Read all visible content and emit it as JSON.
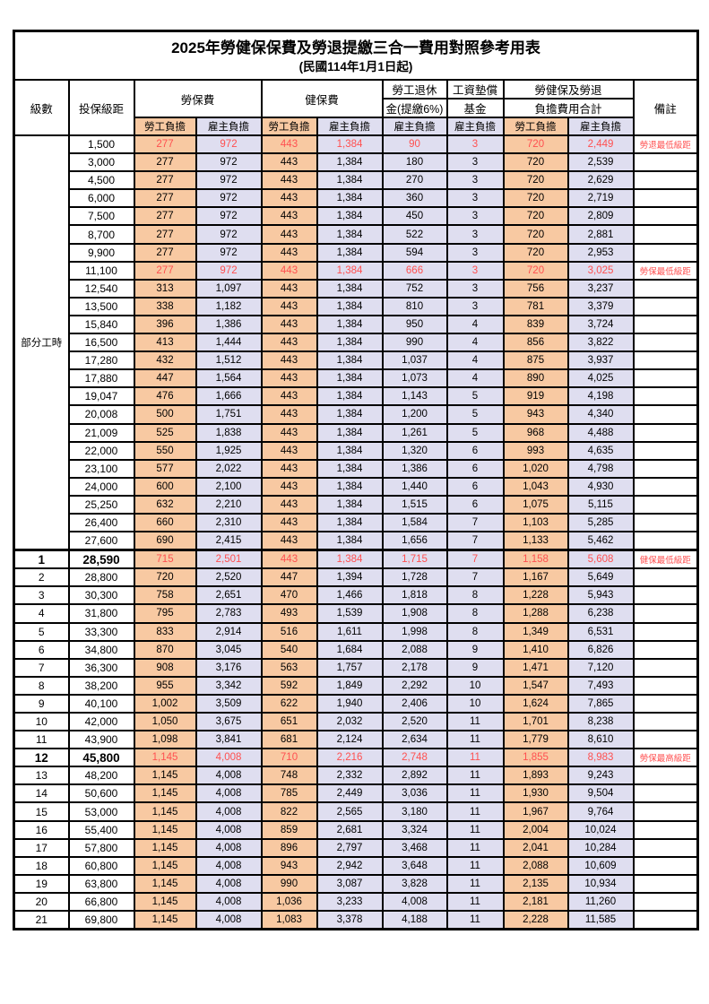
{
  "title": "2025年勞健保保費及勞退提繳三合一費用對照參考用表",
  "subtitle": "(民國114年1月1日起)",
  "colors": {
    "employee_burden_bg": "#F8C9A2",
    "employer_burden_bg": "#DFDEF0",
    "highlight_red": "#FF5050",
    "border": "#000000"
  },
  "header": {
    "level": "級數",
    "bracket": "投保級距",
    "labor_insurance": "勞保費",
    "health_insurance": "健保費",
    "pension_line1": "勞工退休",
    "pension_line2": "金(提繳6%)",
    "wage_fund_line1": "工資墊償",
    "wage_fund_line2": "基金",
    "total_line1": "勞健保及勞退",
    "total_line2": "負擔費用合計",
    "note": "備註",
    "self_burden": "勞工負擔",
    "employer_burden": "雇主負擔"
  },
  "part_time_group": {
    "label": "部分工時",
    "row_count": 23
  },
  "rows": [
    {
      "level": "",
      "bracket": "1,500",
      "values": [
        "277",
        "972",
        "443",
        "1,384",
        "90",
        "3",
        "720",
        "2,449"
      ],
      "note": "勞退最低級距",
      "red": true,
      "bold": false,
      "thick_top": false
    },
    {
      "level": "",
      "bracket": "3,000",
      "values": [
        "277",
        "972",
        "443",
        "1,384",
        "180",
        "3",
        "720",
        "2,539"
      ],
      "note": "",
      "red": false,
      "bold": false,
      "thick_top": false
    },
    {
      "level": "",
      "bracket": "4,500",
      "values": [
        "277",
        "972",
        "443",
        "1,384",
        "270",
        "3",
        "720",
        "2,629"
      ],
      "note": "",
      "red": false,
      "bold": false,
      "thick_top": false
    },
    {
      "level": "",
      "bracket": "6,000",
      "values": [
        "277",
        "972",
        "443",
        "1,384",
        "360",
        "3",
        "720",
        "2,719"
      ],
      "note": "",
      "red": false,
      "bold": false,
      "thick_top": false
    },
    {
      "level": "",
      "bracket": "7,500",
      "values": [
        "277",
        "972",
        "443",
        "1,384",
        "450",
        "3",
        "720",
        "2,809"
      ],
      "note": "",
      "red": false,
      "bold": false,
      "thick_top": false
    },
    {
      "level": "",
      "bracket": "8,700",
      "values": [
        "277",
        "972",
        "443",
        "1,384",
        "522",
        "3",
        "720",
        "2,881"
      ],
      "note": "",
      "red": false,
      "bold": false,
      "thick_top": false
    },
    {
      "level": "",
      "bracket": "9,900",
      "values": [
        "277",
        "972",
        "443",
        "1,384",
        "594",
        "3",
        "720",
        "2,953"
      ],
      "note": "",
      "red": false,
      "bold": false,
      "thick_top": false
    },
    {
      "level": "",
      "bracket": "11,100",
      "values": [
        "277",
        "972",
        "443",
        "1,384",
        "666",
        "3",
        "720",
        "3,025"
      ],
      "note": "勞保最低級距",
      "red": true,
      "bold": false,
      "thick_top": false
    },
    {
      "level": "",
      "bracket": "12,540",
      "values": [
        "313",
        "1,097",
        "443",
        "1,384",
        "752",
        "3",
        "756",
        "3,237"
      ],
      "note": "",
      "red": false,
      "bold": false,
      "thick_top": false
    },
    {
      "level": "",
      "bracket": "13,500",
      "values": [
        "338",
        "1,182",
        "443",
        "1,384",
        "810",
        "3",
        "781",
        "3,379"
      ],
      "note": "",
      "red": false,
      "bold": false,
      "thick_top": false
    },
    {
      "level": "",
      "bracket": "15,840",
      "values": [
        "396",
        "1,386",
        "443",
        "1,384",
        "950",
        "4",
        "839",
        "3,724"
      ],
      "note": "",
      "red": false,
      "bold": false,
      "thick_top": false
    },
    {
      "level": "",
      "bracket": "16,500",
      "values": [
        "413",
        "1,444",
        "443",
        "1,384",
        "990",
        "4",
        "856",
        "3,822"
      ],
      "note": "",
      "red": false,
      "bold": false,
      "thick_top": false
    },
    {
      "level": "",
      "bracket": "17,280",
      "values": [
        "432",
        "1,512",
        "443",
        "1,384",
        "1,037",
        "4",
        "875",
        "3,937"
      ],
      "note": "",
      "red": false,
      "bold": false,
      "thick_top": false
    },
    {
      "level": "",
      "bracket": "17,880",
      "values": [
        "447",
        "1,564",
        "443",
        "1,384",
        "1,073",
        "4",
        "890",
        "4,025"
      ],
      "note": "",
      "red": false,
      "bold": false,
      "thick_top": false
    },
    {
      "level": "",
      "bracket": "19,047",
      "values": [
        "476",
        "1,666",
        "443",
        "1,384",
        "1,143",
        "5",
        "919",
        "4,198"
      ],
      "note": "",
      "red": false,
      "bold": false,
      "thick_top": false
    },
    {
      "level": "",
      "bracket": "20,008",
      "values": [
        "500",
        "1,751",
        "443",
        "1,384",
        "1,200",
        "5",
        "943",
        "4,340"
      ],
      "note": "",
      "red": false,
      "bold": false,
      "thick_top": false
    },
    {
      "level": "",
      "bracket": "21,009",
      "values": [
        "525",
        "1,838",
        "443",
        "1,384",
        "1,261",
        "5",
        "968",
        "4,488"
      ],
      "note": "",
      "red": false,
      "bold": false,
      "thick_top": false
    },
    {
      "level": "",
      "bracket": "22,000",
      "values": [
        "550",
        "1,925",
        "443",
        "1,384",
        "1,320",
        "6",
        "993",
        "4,635"
      ],
      "note": "",
      "red": false,
      "bold": false,
      "thick_top": false
    },
    {
      "level": "",
      "bracket": "23,100",
      "values": [
        "577",
        "2,022",
        "443",
        "1,384",
        "1,386",
        "6",
        "1,020",
        "4,798"
      ],
      "note": "",
      "red": false,
      "bold": false,
      "thick_top": false
    },
    {
      "level": "",
      "bracket": "24,000",
      "values": [
        "600",
        "2,100",
        "443",
        "1,384",
        "1,440",
        "6",
        "1,043",
        "4,930"
      ],
      "note": "",
      "red": false,
      "bold": false,
      "thick_top": false
    },
    {
      "level": "",
      "bracket": "25,250",
      "values": [
        "632",
        "2,210",
        "443",
        "1,384",
        "1,515",
        "6",
        "1,075",
        "5,115"
      ],
      "note": "",
      "red": false,
      "bold": false,
      "thick_top": false
    },
    {
      "level": "",
      "bracket": "26,400",
      "values": [
        "660",
        "2,310",
        "443",
        "1,384",
        "1,584",
        "7",
        "1,103",
        "5,285"
      ],
      "note": "",
      "red": false,
      "bold": false,
      "thick_top": false
    },
    {
      "level": "",
      "bracket": "27,600",
      "values": [
        "690",
        "2,415",
        "443",
        "1,384",
        "1,656",
        "7",
        "1,133",
        "5,462"
      ],
      "note": "",
      "red": false,
      "bold": false,
      "thick_top": false
    },
    {
      "level": "1",
      "bracket": "28,590",
      "values": [
        "715",
        "2,501",
        "443",
        "1,384",
        "1,715",
        "7",
        "1,158",
        "5,608"
      ],
      "note": "健保最低級距",
      "red": true,
      "bold": true,
      "thick_top": true
    },
    {
      "level": "2",
      "bracket": "28,800",
      "values": [
        "720",
        "2,520",
        "447",
        "1,394",
        "1,728",
        "7",
        "1,167",
        "5,649"
      ],
      "note": "",
      "red": false,
      "bold": false,
      "thick_top": false
    },
    {
      "level": "3",
      "bracket": "30,300",
      "values": [
        "758",
        "2,651",
        "470",
        "1,466",
        "1,818",
        "8",
        "1,228",
        "5,943"
      ],
      "note": "",
      "red": false,
      "bold": false,
      "thick_top": false
    },
    {
      "level": "4",
      "bracket": "31,800",
      "values": [
        "795",
        "2,783",
        "493",
        "1,539",
        "1,908",
        "8",
        "1,288",
        "6,238"
      ],
      "note": "",
      "red": false,
      "bold": false,
      "thick_top": false
    },
    {
      "level": "5",
      "bracket": "33,300",
      "values": [
        "833",
        "2,914",
        "516",
        "1,611",
        "1,998",
        "8",
        "1,349",
        "6,531"
      ],
      "note": "",
      "red": false,
      "bold": false,
      "thick_top": false
    },
    {
      "level": "6",
      "bracket": "34,800",
      "values": [
        "870",
        "3,045",
        "540",
        "1,684",
        "2,088",
        "9",
        "1,410",
        "6,826"
      ],
      "note": "",
      "red": false,
      "bold": false,
      "thick_top": false
    },
    {
      "level": "7",
      "bracket": "36,300",
      "values": [
        "908",
        "3,176",
        "563",
        "1,757",
        "2,178",
        "9",
        "1,471",
        "7,120"
      ],
      "note": "",
      "red": false,
      "bold": false,
      "thick_top": false
    },
    {
      "level": "8",
      "bracket": "38,200",
      "values": [
        "955",
        "3,342",
        "592",
        "1,849",
        "2,292",
        "10",
        "1,547",
        "7,493"
      ],
      "note": "",
      "red": false,
      "bold": false,
      "thick_top": false
    },
    {
      "level": "9",
      "bracket": "40,100",
      "values": [
        "1,002",
        "3,509",
        "622",
        "1,940",
        "2,406",
        "10",
        "1,624",
        "7,865"
      ],
      "note": "",
      "red": false,
      "bold": false,
      "thick_top": false
    },
    {
      "level": "10",
      "bracket": "42,000",
      "values": [
        "1,050",
        "3,675",
        "651",
        "2,032",
        "2,520",
        "11",
        "1,701",
        "8,238"
      ],
      "note": "",
      "red": false,
      "bold": false,
      "thick_top": false
    },
    {
      "level": "11",
      "bracket": "43,900",
      "values": [
        "1,098",
        "3,841",
        "681",
        "2,124",
        "2,634",
        "11",
        "1,779",
        "8,610"
      ],
      "note": "",
      "red": false,
      "bold": false,
      "thick_top": false
    },
    {
      "level": "12",
      "bracket": "45,800",
      "values": [
        "1,145",
        "4,008",
        "710",
        "2,216",
        "2,748",
        "11",
        "1,855",
        "8,983"
      ],
      "note": "勞保最高級距",
      "red": true,
      "bold": true,
      "thick_top": false
    },
    {
      "level": "13",
      "bracket": "48,200",
      "values": [
        "1,145",
        "4,008",
        "748",
        "2,332",
        "2,892",
        "11",
        "1,893",
        "9,243"
      ],
      "note": "",
      "red": false,
      "bold": false,
      "thick_top": false
    },
    {
      "level": "14",
      "bracket": "50,600",
      "values": [
        "1,145",
        "4,008",
        "785",
        "2,449",
        "3,036",
        "11",
        "1,930",
        "9,504"
      ],
      "note": "",
      "red": false,
      "bold": false,
      "thick_top": false
    },
    {
      "level": "15",
      "bracket": "53,000",
      "values": [
        "1,145",
        "4,008",
        "822",
        "2,565",
        "3,180",
        "11",
        "1,967",
        "9,764"
      ],
      "note": "",
      "red": false,
      "bold": false,
      "thick_top": false
    },
    {
      "level": "16",
      "bracket": "55,400",
      "values": [
        "1,145",
        "4,008",
        "859",
        "2,681",
        "3,324",
        "11",
        "2,004",
        "10,024"
      ],
      "note": "",
      "red": false,
      "bold": false,
      "thick_top": false
    },
    {
      "level": "17",
      "bracket": "57,800",
      "values": [
        "1,145",
        "4,008",
        "896",
        "2,797",
        "3,468",
        "11",
        "2,041",
        "10,284"
      ],
      "note": "",
      "red": false,
      "bold": false,
      "thick_top": false
    },
    {
      "level": "18",
      "bracket": "60,800",
      "values": [
        "1,145",
        "4,008",
        "943",
        "2,942",
        "3,648",
        "11",
        "2,088",
        "10,609"
      ],
      "note": "",
      "red": false,
      "bold": false,
      "thick_top": false
    },
    {
      "level": "19",
      "bracket": "63,800",
      "values": [
        "1,145",
        "4,008",
        "990",
        "3,087",
        "3,828",
        "11",
        "2,135",
        "10,934"
      ],
      "note": "",
      "red": false,
      "bold": false,
      "thick_top": false
    },
    {
      "level": "20",
      "bracket": "66,800",
      "values": [
        "1,145",
        "4,008",
        "1,036",
        "3,233",
        "4,008",
        "11",
        "2,181",
        "11,260"
      ],
      "note": "",
      "red": false,
      "bold": false,
      "thick_top": false
    },
    {
      "level": "21",
      "bracket": "69,800",
      "values": [
        "1,145",
        "4,008",
        "1,083",
        "3,378",
        "4,188",
        "11",
        "2,228",
        "11,585"
      ],
      "note": "",
      "red": false,
      "bold": false,
      "thick_top": false
    }
  ]
}
